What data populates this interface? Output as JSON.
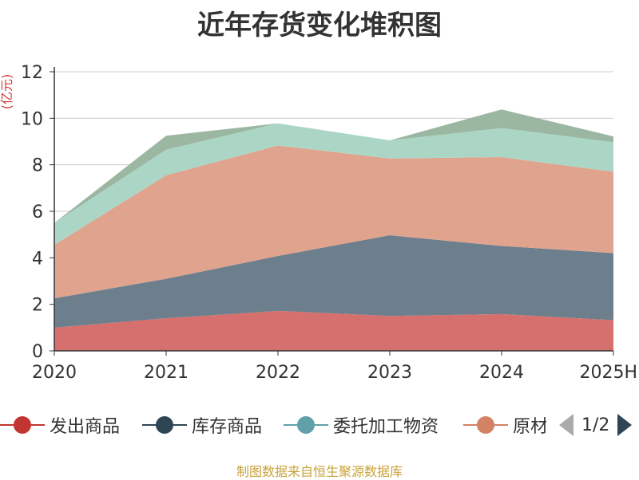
{
  "chart_data": {
    "type": "area",
    "stacked": true,
    "title": "近年存货变化堆积图",
    "ylabel": "(亿元)",
    "x": [
      "2020",
      "2021",
      "2022",
      "2023",
      "2024",
      "2025H"
    ],
    "ylim": [
      0,
      12
    ],
    "yticks": [
      "0",
      "2",
      "4",
      "6",
      "8",
      "10",
      "12"
    ],
    "grid": true,
    "legend_position": "bottom",
    "series": [
      {
        "name": "发出商品",
        "values": [
          1.0,
          1.4,
          1.72,
          1.5,
          1.58,
          1.32
        ],
        "color": "#d5706f"
      },
      {
        "name": "库存商品",
        "values": [
          1.26,
          1.7,
          2.36,
          3.47,
          2.93,
          2.88
        ],
        "color": "#6d7f8c"
      },
      {
        "name": "原材料",
        "values": [
          2.3,
          4.45,
          4.75,
          3.3,
          3.82,
          3.5
        ],
        "color": "#e0a38e"
      },
      {
        "name": "委托加工物资",
        "values": [
          0.94,
          1.1,
          0.95,
          0.78,
          1.25,
          1.27
        ],
        "color": "#abd6c6"
      },
      {
        "name": "",
        "values": [
          0.0,
          0.6,
          0.0,
          0.0,
          0.8,
          0.25
        ],
        "color": "#9bb7a1"
      }
    ]
  },
  "legend": {
    "items": [
      {
        "label": "发出商品",
        "color": "#c23531"
      },
      {
        "label": "库存商品",
        "color": "#2f4554"
      },
      {
        "label": "委托加工物资",
        "color": "#61a0a8"
      },
      {
        "label": "原材料",
        "color": "#d48265"
      }
    ],
    "page": "1/2"
  },
  "source": "制图数据来自恒生聚源数据库"
}
